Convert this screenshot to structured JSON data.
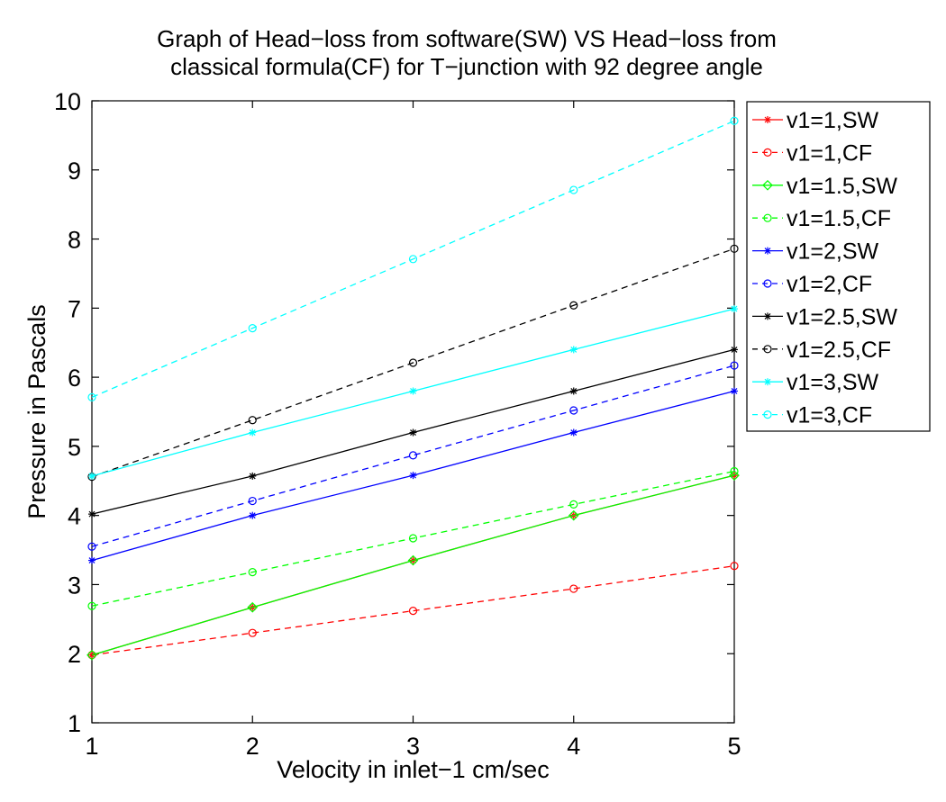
{
  "chart_data": {
    "type": "line",
    "title": [
      "Graph of Head−loss from software(SW) VS Head−loss from",
      "classical formula(CF) for T−junction with 92 degree angle"
    ],
    "xlabel": "Velocity in inlet−1 cm/sec",
    "ylabel": "Pressure in Pascals",
    "xlim": [
      1,
      5
    ],
    "ylim": [
      1,
      10
    ],
    "xticks": [
      1,
      2,
      3,
      4,
      5
    ],
    "yticks": [
      1,
      2,
      3,
      4,
      5,
      6,
      7,
      8,
      9,
      10
    ],
    "grid": false,
    "legend_position": "outside-right",
    "x": [
      1,
      2,
      3,
      4,
      5
    ],
    "series": [
      {
        "name": "v1=1,SW",
        "color": "#ff0000",
        "linestyle": "solid",
        "marker": "star",
        "values": [
          1.98,
          2.67,
          3.35,
          4.0,
          4.58
        ]
      },
      {
        "name": "v1=1,CF",
        "color": "#ff0000",
        "linestyle": "dashed",
        "marker": "circle",
        "values": [
          1.98,
          2.3,
          2.62,
          2.94,
          3.27
        ]
      },
      {
        "name": "v1=1.5,SW",
        "color": "#00ff00",
        "linestyle": "solid",
        "marker": "diamond",
        "values": [
          1.98,
          2.67,
          3.35,
          4.0,
          4.58
        ]
      },
      {
        "name": "v1=1.5,CF",
        "color": "#00ff00",
        "linestyle": "dashed",
        "marker": "circle",
        "values": [
          2.69,
          3.18,
          3.67,
          4.16,
          4.64
        ]
      },
      {
        "name": "v1=2,SW",
        "color": "#0000ff",
        "linestyle": "solid",
        "marker": "star",
        "values": [
          3.35,
          4.0,
          4.58,
          5.2,
          5.8
        ]
      },
      {
        "name": "v1=2,CF",
        "color": "#0000ff",
        "linestyle": "dashed",
        "marker": "circle",
        "values": [
          3.55,
          4.21,
          4.87,
          5.52,
          6.17
        ]
      },
      {
        "name": "v1=2.5,SW",
        "color": "#000000",
        "linestyle": "solid",
        "marker": "star",
        "values": [
          4.02,
          4.57,
          5.2,
          5.8,
          6.4
        ]
      },
      {
        "name": "v1=2.5,CF",
        "color": "#000000",
        "linestyle": "dashed",
        "marker": "circle",
        "values": [
          4.56,
          5.38,
          6.21,
          7.04,
          7.86
        ]
      },
      {
        "name": "v1=3,SW",
        "color": "#00ffff",
        "linestyle": "solid",
        "marker": "star",
        "values": [
          4.57,
          5.2,
          5.8,
          6.4,
          6.99
        ]
      },
      {
        "name": "v1=3,CF",
        "color": "#00ffff",
        "linestyle": "dashed",
        "marker": "circle",
        "values": [
          5.71,
          6.71,
          7.71,
          8.71,
          9.71
        ]
      }
    ]
  }
}
